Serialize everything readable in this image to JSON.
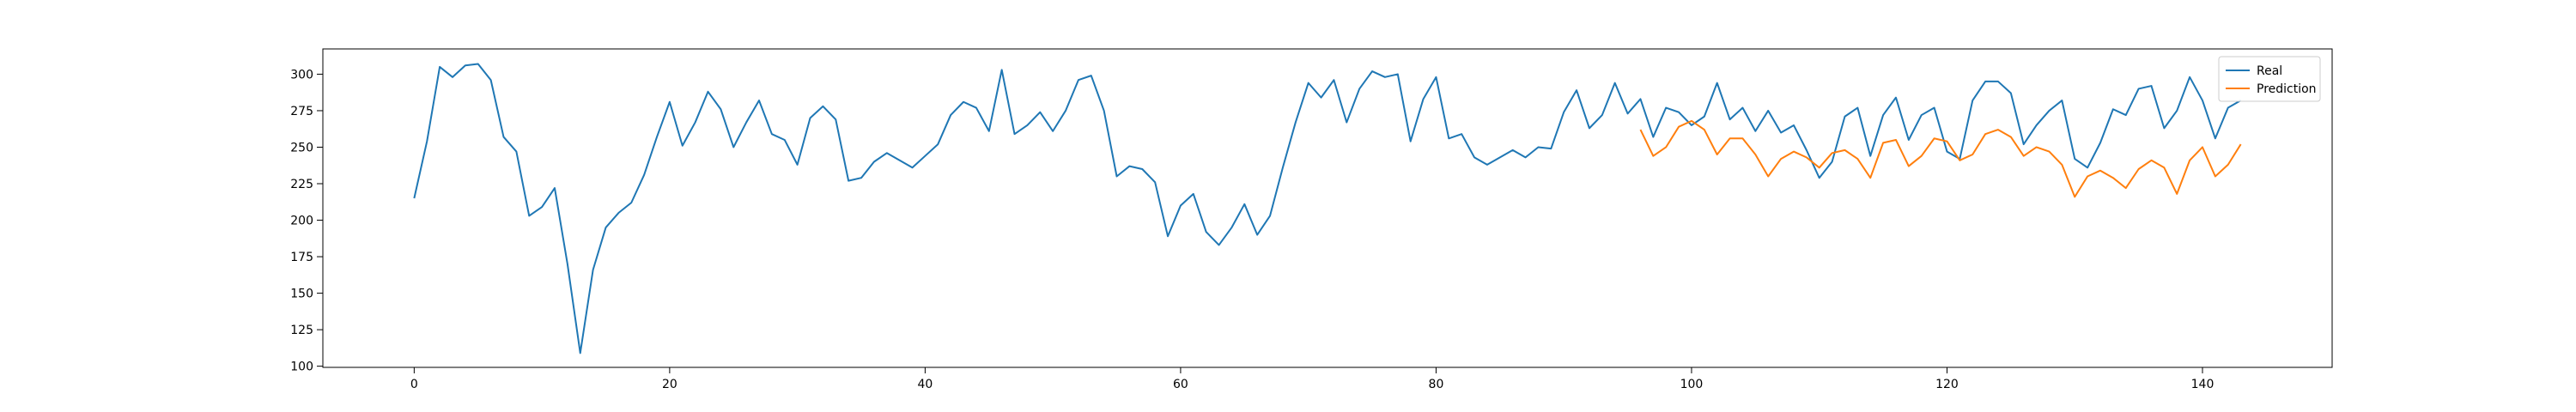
{
  "chart_data": {
    "type": "line",
    "title": "",
    "xlabel": "",
    "ylabel": "",
    "xlim": [
      -7.15,
      150.15
    ],
    "ylim": [
      99.2,
      317.3
    ],
    "xticks": [
      0,
      20,
      40,
      60,
      80,
      100,
      120,
      140
    ],
    "yticks": [
      100,
      125,
      150,
      175,
      200,
      225,
      250,
      275,
      300
    ],
    "legend_position": "upper-right",
    "series": [
      {
        "name": "Real",
        "color": "#1f77b4",
        "x_start": 0,
        "values": [
          215,
          254,
          305,
          298,
          306,
          307,
          296,
          257,
          247,
          203,
          209,
          222,
          170,
          109,
          166,
          195,
          205,
          212,
          231,
          257,
          281,
          251,
          267,
          288,
          276,
          250,
          267,
          282,
          259,
          255,
          238,
          270,
          278,
          269,
          227,
          229,
          240,
          246,
          241,
          236,
          244,
          252,
          272,
          281,
          277,
          261,
          303,
          259,
          265,
          274,
          261,
          275,
          296,
          299,
          275,
          230,
          237,
          235,
          226,
          189,
          210,
          218,
          192,
          183,
          195,
          211,
          190,
          203,
          236,
          267,
          294,
          284,
          296,
          267,
          290,
          302,
          298,
          300,
          254,
          283,
          298,
          256,
          259,
          243,
          238,
          243,
          248,
          243,
          250,
          249,
          274,
          289,
          263,
          272,
          294,
          273,
          283,
          257,
          277,
          274,
          265,
          271,
          294,
          269,
          277,
          261,
          275,
          260,
          265,
          248,
          229,
          240,
          271,
          277,
          244,
          272,
          284,
          255,
          272,
          277,
          247,
          242,
          282,
          295,
          295,
          287,
          252,
          265,
          275,
          282,
          242,
          236,
          253,
          276,
          272,
          290,
          292,
          263,
          275,
          298,
          282,
          256,
          277,
          282
        ]
      },
      {
        "name": "Prediction",
        "color": "#ff7f0e",
        "x_start": 96,
        "values": [
          262,
          244,
          250,
          264,
          268,
          262,
          245,
          256,
          256,
          245,
          230,
          242,
          247,
          243,
          236,
          246,
          248,
          242,
          229,
          253,
          255,
          237,
          244,
          256,
          254,
          241,
          245,
          259,
          262,
          257,
          244,
          250,
          247,
          238,
          216,
          230,
          234,
          229,
          222,
          235,
          241,
          236,
          218,
          241,
          250,
          230,
          238,
          252
        ]
      }
    ]
  }
}
